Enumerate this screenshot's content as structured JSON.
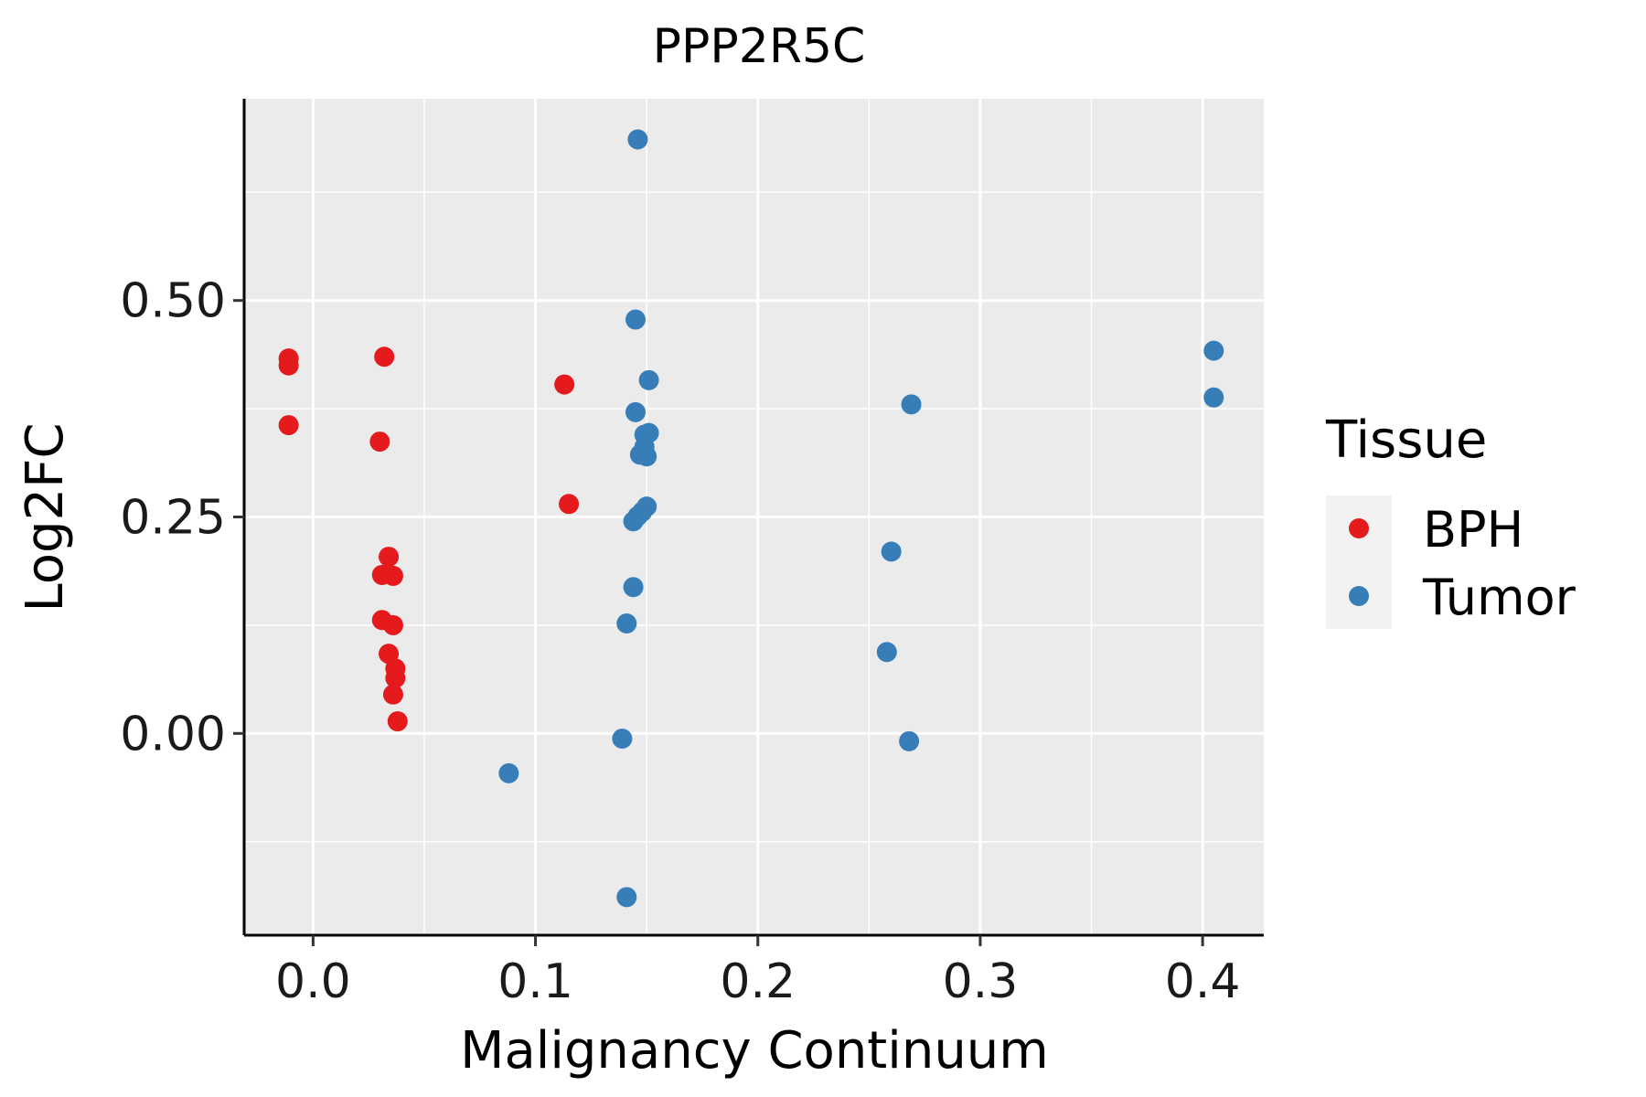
{
  "chart_data": {
    "type": "scatter",
    "title": "PPP2R5C",
    "xlabel": "Malignancy Continuum",
    "ylabel": "Log2FC",
    "xlim": [
      -0.031,
      0.4275
    ],
    "ylim": [
      -0.233,
      0.733
    ],
    "x_ticks": [
      0.0,
      0.1,
      0.2,
      0.3,
      0.4
    ],
    "x_tick_labels": [
      "0.0",
      "0.1",
      "0.2",
      "0.3",
      "0.4"
    ],
    "y_ticks": [
      0.0,
      0.25,
      0.5
    ],
    "y_tick_labels": [
      "0.00",
      "0.25",
      "0.50"
    ],
    "x_minor": [
      0.05,
      0.15,
      0.25,
      0.35
    ],
    "y_minor": [
      -0.125,
      0.125,
      0.375,
      0.625
    ],
    "grid": true,
    "legend": {
      "title": "Tissue",
      "position": "right",
      "entries": [
        "BPH",
        "Tumor"
      ]
    },
    "series": [
      {
        "name": "BPH",
        "color": "#e41a1c",
        "points": [
          [
            -0.011,
            0.433
          ],
          [
            -0.011,
            0.425
          ],
          [
            -0.011,
            0.356
          ],
          [
            0.032,
            0.435
          ],
          [
            0.03,
            0.337
          ],
          [
            0.034,
            0.204
          ],
          [
            0.031,
            0.183
          ],
          [
            0.036,
            0.182
          ],
          [
            0.031,
            0.131
          ],
          [
            0.036,
            0.125
          ],
          [
            0.034,
            0.092
          ],
          [
            0.037,
            0.075
          ],
          [
            0.037,
            0.064
          ],
          [
            0.036,
            0.045
          ],
          [
            0.038,
            0.014
          ],
          [
            0.113,
            0.403
          ],
          [
            0.115,
            0.265
          ]
        ]
      },
      {
        "name": "Tumor",
        "color": "#377eb8",
        "points": [
          [
            0.146,
            0.686
          ],
          [
            0.145,
            0.478
          ],
          [
            0.151,
            0.408
          ],
          [
            0.145,
            0.371
          ],
          [
            0.151,
            0.347
          ],
          [
            0.149,
            0.345
          ],
          [
            0.149,
            0.331
          ],
          [
            0.147,
            0.322
          ],
          [
            0.15,
            0.32
          ],
          [
            0.15,
            0.262
          ],
          [
            0.148,
            0.256
          ],
          [
            0.146,
            0.251
          ],
          [
            0.144,
            0.245
          ],
          [
            0.144,
            0.169
          ],
          [
            0.141,
            0.127
          ],
          [
            0.139,
            -0.006
          ],
          [
            0.141,
            -0.189
          ],
          [
            0.088,
            -0.046
          ],
          [
            0.269,
            0.38
          ],
          [
            0.26,
            0.21
          ],
          [
            0.258,
            0.094
          ],
          [
            0.268,
            -0.009
          ],
          [
            0.405,
            0.442
          ],
          [
            0.405,
            0.388
          ]
        ]
      }
    ]
  }
}
